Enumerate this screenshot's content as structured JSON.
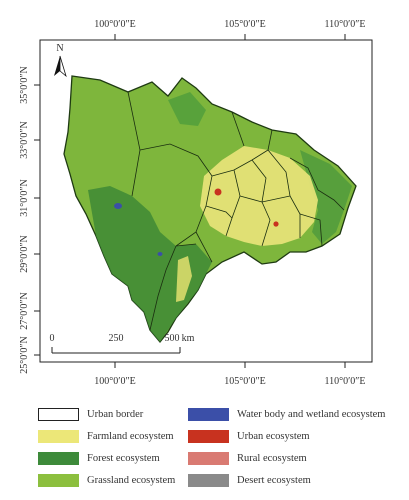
{
  "map": {
    "north_label": "N",
    "top_ticks": [
      "100°0′0″E",
      "105°0′0″E",
      "110°0′0″E"
    ],
    "bottom_ticks": [
      "100°0′0″E",
      "105°0′0″E",
      "110°0′0″E"
    ],
    "left_ticks": [
      "35°0′0″N",
      "33°0′0″N",
      "31°0′0″N",
      "29°0′0″N",
      "27°0′0″N",
      "25°0′0″N"
    ],
    "scale_bar": {
      "labels": [
        "0",
        "250",
        "500"
      ],
      "unit": "km"
    }
  },
  "legend": {
    "items": [
      {
        "label": "Urban border",
        "color": "#ffffff",
        "kind": "outline"
      },
      {
        "label": "Water body and wetland ecosystem",
        "color": "#3b4fa8",
        "kind": "fill"
      },
      {
        "label": "Farmland ecosystem",
        "color": "#ece778",
        "kind": "fill"
      },
      {
        "label": "Urban ecosystem",
        "color": "#c8321f",
        "kind": "fill"
      },
      {
        "label": "Forest ecosystem",
        "color": "#3d8a3a",
        "kind": "fill"
      },
      {
        "label": "Rural ecosystem",
        "color": "#d97a72",
        "kind": "fill"
      },
      {
        "label": "Grassland ecosystem",
        "color": "#8cbf3e",
        "kind": "fill"
      },
      {
        "label": "Desert ecosystem",
        "color": "#8a8a8a",
        "kind": "fill"
      }
    ]
  }
}
